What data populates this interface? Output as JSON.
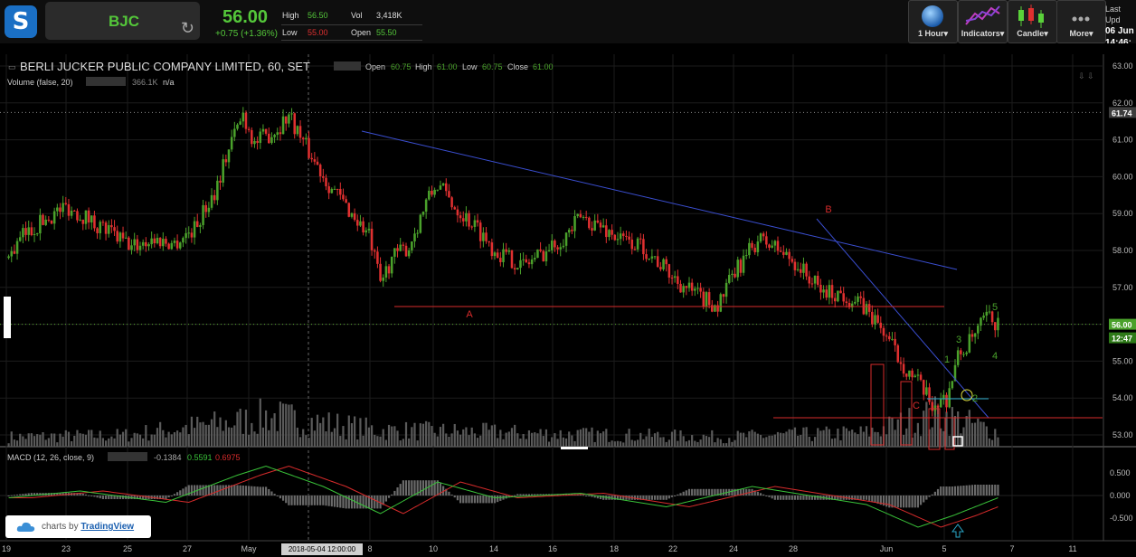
{
  "header": {
    "symbol": "BJC",
    "price": "56.00",
    "change": "+0.75 (+1.36%)",
    "high_label": "High",
    "high": "56.50",
    "low_label": "Low",
    "low": "55.00",
    "vol_label": "Vol",
    "vol": "3,418K",
    "open_label": "Open",
    "open": "55.50",
    "last_update_label": "Last Upd",
    "last_update_date": "06 Jun",
    "last_update_time": "14:46:"
  },
  "toolbar": {
    "interval": "1 Hour▾",
    "indicators": "Indicators▾",
    "candle": "Candle▾",
    "more": "More▾"
  },
  "chart_data": {
    "type": "candlestick",
    "title": "BERLI JUCKER PUBLIC COMPANY LIMITED, 60, SET",
    "ohlc_labels": {
      "open": "Open",
      "open_v": "60.75",
      "high": "High",
      "high_v": "61.00",
      "low": "Low",
      "low_v": "60.75",
      "close": "Close",
      "close_v": "61.00"
    },
    "volume_label": "Volume (false, 20)",
    "volume_value": "366.1K",
    "volume_extra": "n/a",
    "macd_label": "MACD (12, 26, close, 9)",
    "macd_values": [
      "-0.1384",
      "0.5591",
      "0.6975"
    ],
    "y_ticks": [
      "63.00",
      "62.00",
      "61.00",
      "60.00",
      "59.00",
      "58.00",
      "57.00",
      "56.00",
      "55.00",
      "54.00",
      "53.00"
    ],
    "ylim": [
      52.75,
      63.2
    ],
    "price_tags": [
      "61.74",
      "56.00",
      "12:47"
    ],
    "macd_ticks": [
      "0.500",
      "0.000",
      "-0.500"
    ],
    "x_ticks": [
      "19",
      "23",
      "25",
      "27",
      "May",
      "8",
      "10",
      "14",
      "16",
      "18",
      "22",
      "24",
      "28",
      "Jun",
      "5",
      "7",
      "11"
    ],
    "x_highlight": "2018-05-04 12:00:00",
    "annotations": [
      "A",
      "B",
      "C",
      "1",
      "2",
      "3",
      "4",
      "5"
    ],
    "anchors": [
      [
        0,
        57.8
      ],
      [
        5,
        58.4
      ],
      [
        12,
        58.8
      ],
      [
        20,
        59.2
      ],
      [
        27,
        58.9
      ],
      [
        35,
        58.5
      ],
      [
        43,
        58.1
      ],
      [
        50,
        58.3
      ],
      [
        58,
        58.2
      ],
      [
        65,
        58.6
      ],
      [
        72,
        59.6
      ],
      [
        78,
        61.0
      ],
      [
        82,
        61.7
      ],
      [
        86,
        60.9
      ],
      [
        94,
        61.3
      ],
      [
        98,
        61.7
      ],
      [
        104,
        60.8
      ],
      [
        112,
        59.8
      ],
      [
        120,
        59.0
      ],
      [
        126,
        58.4
      ],
      [
        130,
        57.1
      ],
      [
        134,
        57.8
      ],
      [
        140,
        58.1
      ],
      [
        146,
        59.3
      ],
      [
        150,
        59.8
      ],
      [
        156,
        59.2
      ],
      [
        164,
        58.6
      ],
      [
        170,
        58.0
      ],
      [
        180,
        57.6
      ],
      [
        190,
        58.1
      ],
      [
        196,
        58.5
      ],
      [
        200,
        58.9
      ],
      [
        206,
        58.7
      ],
      [
        214,
        58.3
      ],
      [
        222,
        58.1
      ],
      [
        232,
        57.3
      ],
      [
        240,
        56.8
      ],
      [
        248,
        56.5
      ],
      [
        254,
        57.4
      ],
      [
        262,
        58.3
      ],
      [
        268,
        58.1
      ],
      [
        276,
        57.6
      ],
      [
        284,
        56.9
      ],
      [
        292,
        56.8
      ],
      [
        300,
        56.4
      ],
      [
        306,
        55.8
      ],
      [
        312,
        55.0
      ],
      [
        318,
        54.4
      ],
      [
        323,
        53.8
      ],
      [
        328,
        54.0
      ],
      [
        332,
        55.1
      ],
      [
        338,
        55.7
      ],
      [
        342,
        56.2
      ],
      [
        346,
        56.0
      ]
    ],
    "volume_anchors": [
      [
        0,
        0.12
      ],
      [
        40,
        0.14
      ],
      [
        85,
        0.33
      ],
      [
        90,
        0.38
      ],
      [
        130,
        0.2
      ],
      [
        165,
        0.18
      ],
      [
        200,
        0.15
      ],
      [
        250,
        0.12
      ],
      [
        300,
        0.17
      ],
      [
        325,
        0.4
      ],
      [
        346,
        0.18
      ]
    ],
    "macd_anchors": [
      [
        0,
        -0.05
      ],
      [
        25,
        0.1
      ],
      [
        55,
        -0.15
      ],
      [
        80,
        0.45
      ],
      [
        90,
        0.65
      ],
      [
        110,
        0.2
      ],
      [
        130,
        -0.4
      ],
      [
        150,
        0.3
      ],
      [
        170,
        -0.05
      ],
      [
        200,
        0.05
      ],
      [
        230,
        -0.25
      ],
      [
        260,
        0.2
      ],
      [
        280,
        0.0
      ],
      [
        300,
        -0.2
      ],
      [
        318,
        -0.7
      ],
      [
        330,
        -0.45
      ],
      [
        346,
        -0.05
      ]
    ],
    "signal_lag": 8
  },
  "watermark": {
    "text_prefix": "charts by ",
    "text_brand": "TradingView"
  },
  "colors": {
    "up": "#4aa12b",
    "down": "#e03030",
    "trendline": "#3a4ed0",
    "hline": "#d62b2b",
    "macd": "#39c239",
    "signal": "#d62b2b",
    "grid": "#1c1c1c"
  }
}
